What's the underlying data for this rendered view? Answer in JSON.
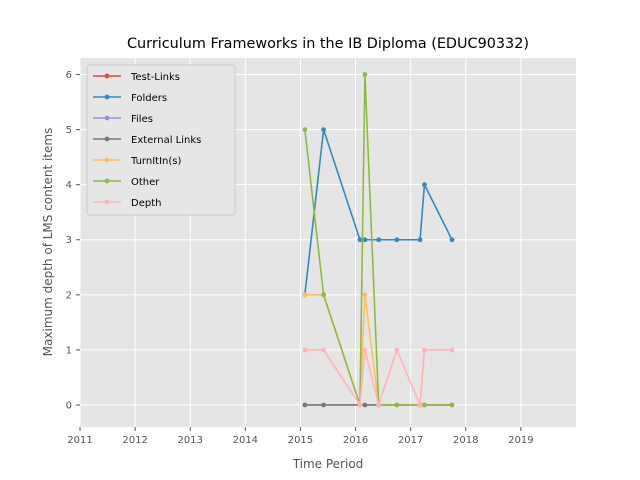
{
  "chart_data": {
    "type": "line",
    "title": "Curriculum Frameworks in the IB Diploma (EDUC90332)",
    "xlabel": "Time Period",
    "ylabel": "Maximum depth of LMS content items",
    "xlim": [
      2011,
      2020
    ],
    "ylim": [
      -0.4,
      6.3
    ],
    "xticks": [
      2011,
      2012,
      2013,
      2014,
      2015,
      2016,
      2017,
      2018,
      2019
    ],
    "yticks": [
      0,
      1,
      2,
      3,
      4,
      5,
      6
    ],
    "grid": true,
    "legend": "top-left",
    "series": [
      {
        "name": "Test-Links",
        "color": "#e24a33",
        "x": [],
        "y": []
      },
      {
        "name": "Folders",
        "color": "#348abd",
        "x": [
          2015.08,
          2015.42,
          2016.08,
          2016.17,
          2016.42,
          2016.75,
          2017.17,
          2017.25,
          2017.75
        ],
        "y": [
          2,
          5,
          3,
          3,
          3,
          3,
          3,
          4,
          3
        ]
      },
      {
        "name": "Files",
        "color": "#988ed5",
        "x": [],
        "y": []
      },
      {
        "name": "External Links",
        "color": "#777777",
        "x": [
          2015.08,
          2015.42,
          2016.08,
          2016.17,
          2016.42,
          2016.75,
          2017.17,
          2017.25,
          2017.75
        ],
        "y": [
          0,
          0,
          0,
          0,
          0,
          0,
          0,
          0,
          0
        ]
      },
      {
        "name": "TurnItIn(s)",
        "color": "#fbc15e",
        "x": [
          2015.08,
          2015.42,
          2016.08,
          2016.17,
          2016.42,
          2016.75,
          2017.17,
          2017.25,
          2017.75
        ],
        "y": [
          2,
          2,
          0,
          2,
          0,
          0,
          0,
          0,
          0
        ]
      },
      {
        "name": "Other",
        "color": "#8eba42",
        "x": [
          2015.08,
          2015.42,
          2016.08,
          2016.17,
          2016.42,
          2016.75,
          2017.17,
          2017.25,
          2017.75
        ],
        "y": [
          5,
          2,
          0,
          6,
          0,
          0,
          0,
          0,
          0
        ]
      },
      {
        "name": "Depth",
        "color": "#ffb5b8",
        "x": [
          2015.08,
          2015.42,
          2016.08,
          2016.17,
          2016.42,
          2016.75,
          2017.17,
          2017.25,
          2017.75
        ],
        "y": [
          1,
          1,
          0,
          1,
          0,
          1,
          0,
          1,
          1
        ]
      }
    ]
  }
}
